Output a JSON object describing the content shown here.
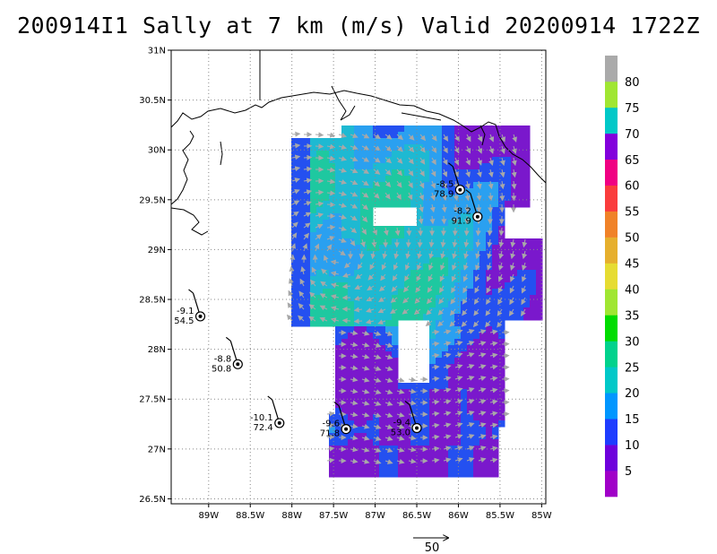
{
  "title": "200914I1 Sally at 7 km (m/s) Valid 20200914 1722Z",
  "map": {
    "lon_range": [
      -89.45,
      -84.95
    ],
    "lat_range": [
      26.45,
      31.0
    ],
    "lat_ticks": [
      {
        "v": 31.0,
        "label": "31N"
      },
      {
        "v": 30.5,
        "label": "30.5N"
      },
      {
        "v": 30.0,
        "label": "30N"
      },
      {
        "v": 29.5,
        "label": "29.5N"
      },
      {
        "v": 29.0,
        "label": "29N"
      },
      {
        "v": 28.5,
        "label": "28.5N"
      },
      {
        "v": 28.0,
        "label": "28N"
      },
      {
        "v": 27.5,
        "label": "27.5N"
      },
      {
        "v": 27.0,
        "label": "27N"
      },
      {
        "v": 26.5,
        "label": "26.5N"
      }
    ],
    "lon_ticks": [
      {
        "v": -89.0,
        "label": "89W"
      },
      {
        "v": -88.5,
        "label": "88.5W"
      },
      {
        "v": -88.0,
        "label": "88W"
      },
      {
        "v": -87.5,
        "label": "87.5W"
      },
      {
        "v": -87.0,
        "label": "87W"
      },
      {
        "v": -86.5,
        "label": "86.5W"
      },
      {
        "v": -86.0,
        "label": "86W"
      },
      {
        "v": -85.5,
        "label": "85.5W"
      },
      {
        "v": -85.0,
        "label": "85W"
      }
    ],
    "grid": "dotted",
    "storm_center": {
      "lon": -87.45,
      "lat": 28.95
    }
  },
  "buoys": [
    {
      "lon": -89.1,
      "lat": 28.33,
      "top": "-9.1",
      "bottom": "54.5"
    },
    {
      "lon": -88.65,
      "lat": 27.85,
      "top": "-8.8",
      "bottom": "50.8"
    },
    {
      "lon": -88.15,
      "lat": 27.26,
      "top": "-10.1",
      "bottom": "72.4"
    },
    {
      "lon": -87.35,
      "lat": 27.2,
      "top": "-9.6",
      "bottom": "71.8"
    },
    {
      "lon": -86.5,
      "lat": 27.21,
      "top": "-9.4",
      "bottom": "53.0"
    },
    {
      "lon": -85.98,
      "lat": 29.6,
      "top": "-8.5",
      "bottom": "78.9"
    },
    {
      "lon": -85.77,
      "lat": 29.33,
      "top": "-8.2",
      "bottom": "91.9"
    }
  ],
  "colorbar": {
    "colors": [
      "#a000c8",
      "#6e00dc",
      "#1e3cff",
      "#0096ff",
      "#00c8c8",
      "#00d28c",
      "#00dc00",
      "#a0e632",
      "#e6dc32",
      "#e6af2d",
      "#f08228",
      "#fa3c3c",
      "#f00082",
      "#8200dc",
      "#00c8c8",
      "#a0e632",
      "#aaaaaa"
    ],
    "labels": [
      "5",
      "10",
      "15",
      "20",
      "25",
      "30",
      "35",
      "40",
      "45",
      "50",
      "55",
      "60",
      "65",
      "70",
      "75",
      "80"
    ]
  },
  "scale_vector": {
    "label": "50"
  }
}
